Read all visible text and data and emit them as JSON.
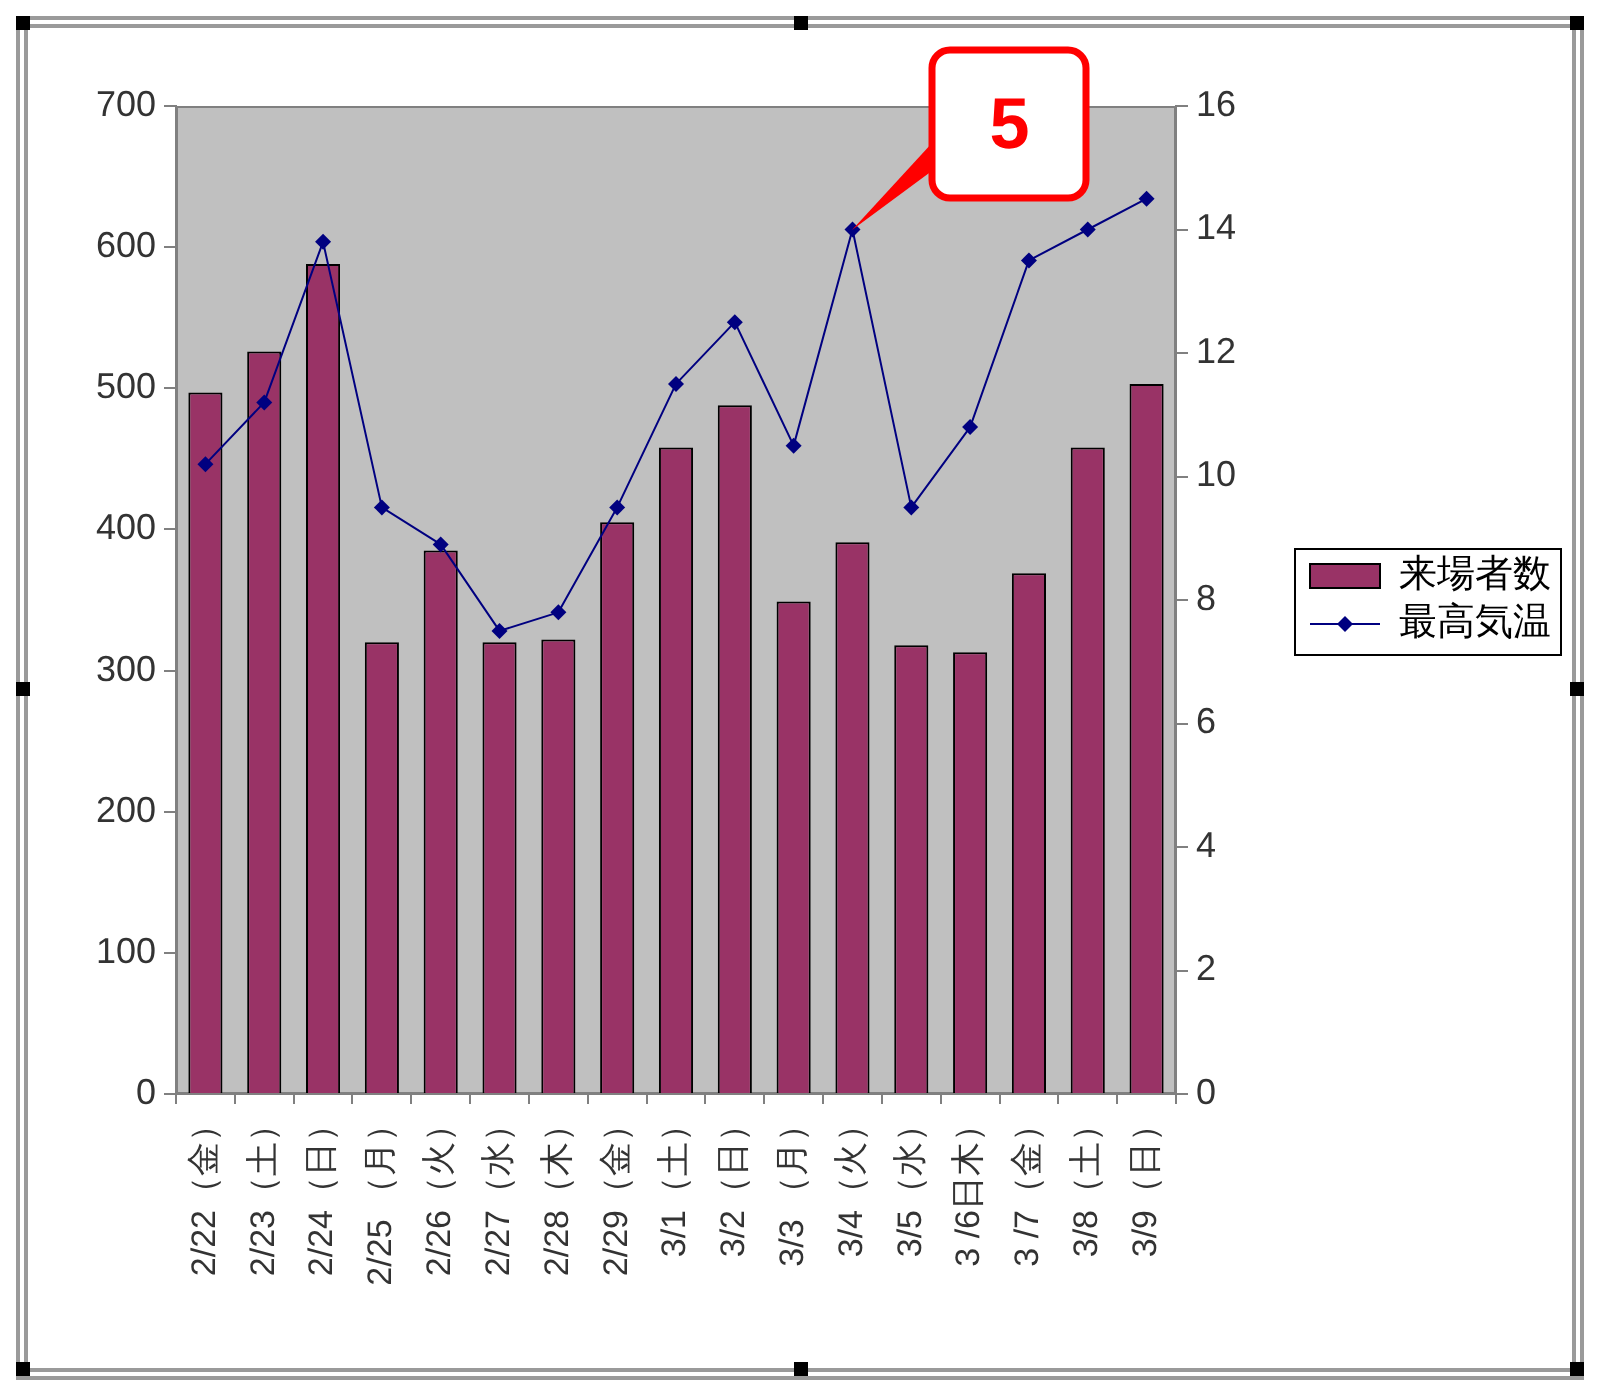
{
  "chart_data": {
    "type": "bar",
    "categories": [
      "2/22（金）",
      "2/23（土）",
      "2/24（日）",
      "2/25 （月）",
      "2/26（火）",
      "2/27（水）",
      "2/28（木）",
      "2/29（金）",
      "3/1（土）",
      "3/2（日）",
      "3/3 （月）",
      "3/4（火）",
      "3/5（水）",
      "3 /6日木）",
      "3 /7（金）",
      "3/8（土）",
      "3/9（日）"
    ],
    "series": [
      {
        "name": "来場者数",
        "color": "#993366",
        "values": [
          497,
          526,
          588,
          320,
          385,
          320,
          322,
          405,
          458,
          488,
          349,
          391,
          318,
          313,
          369,
          458,
          503
        ]
      },
      {
        "name": "最高気温",
        "type": "line",
        "axis": "y2",
        "color": "#000080",
        "values": [
          10.2,
          11.2,
          13.8,
          9.5,
          8.9,
          7.5,
          7.8,
          9.5,
          11.5,
          12.5,
          10.5,
          14.0,
          9.5,
          10.8,
          13.5,
          14.0,
          14.5
        ]
      }
    ],
    "ylim": [
      0,
      700
    ],
    "yticks": [
      0,
      100,
      200,
      300,
      400,
      500,
      600,
      700
    ],
    "y2lim": [
      0,
      16
    ],
    "y2ticks": [
      0,
      2,
      4,
      6,
      8,
      10,
      12,
      14,
      16
    ],
    "annotations": [
      {
        "text": "5",
        "x": "3/4（火）",
        "y": 612
      }
    ],
    "marker": "diamond",
    "line_style": "solid",
    "grid": false,
    "legend": "right"
  }
}
